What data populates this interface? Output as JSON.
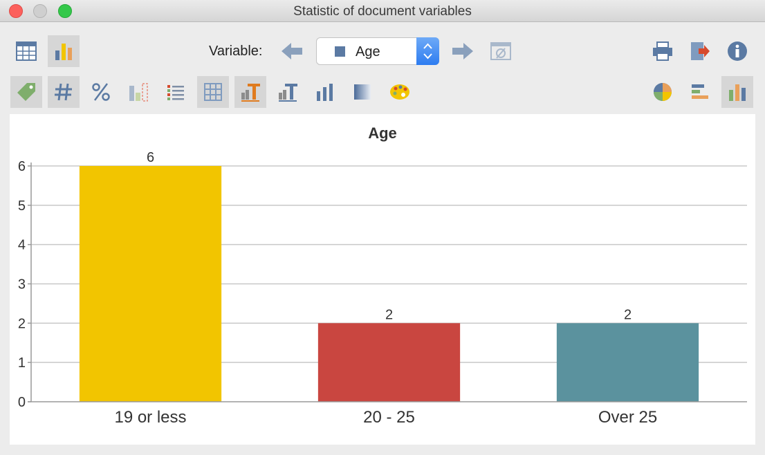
{
  "window": {
    "title": "Statistic of document variables"
  },
  "toolbar": {
    "variable_label": "Variable:",
    "variable_value": "Age",
    "variable_swatch_color": "#5b7aa3"
  },
  "chart_data": {
    "type": "bar",
    "title": "Age",
    "categories": [
      "19 or less",
      "20 - 25",
      "Over 25"
    ],
    "values": [
      6,
      2,
      2
    ],
    "data_labels": [
      "6",
      "2",
      "2"
    ],
    "colors": [
      "#f2c500",
      "#c94640",
      "#5b929e"
    ],
    "ylim": [
      0,
      6
    ],
    "yticks": [
      "0",
      "1",
      "2",
      "3",
      "4",
      "5",
      "6"
    ],
    "grid": true,
    "xlabel": "",
    "ylabel": ""
  }
}
